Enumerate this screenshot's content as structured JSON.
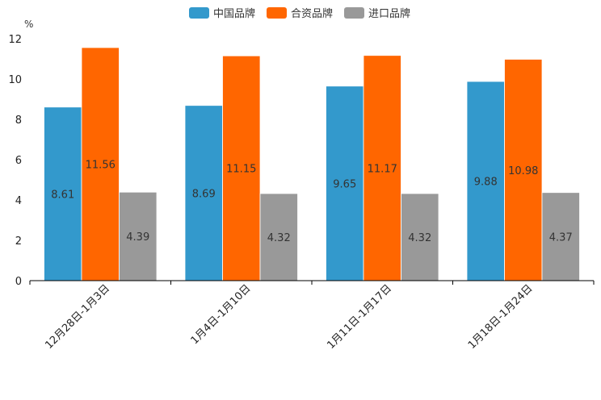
{
  "chart_data": {
    "type": "bar",
    "unit": "%",
    "categories": [
      "12月28日-1月3日",
      "1月4日-1月10日",
      "1月11日-1月17日",
      "1月18日-1月24日"
    ],
    "series": [
      {
        "name": "中国品牌",
        "color": "#3399CC",
        "values": [
          8.61,
          8.69,
          9.65,
          9.88
        ]
      },
      {
        "name": "合资品牌",
        "color": "#FF6600",
        "values": [
          11.56,
          11.15,
          11.17,
          10.98
        ]
      },
      {
        "name": "进口品牌",
        "color": "#999999",
        "values": [
          4.39,
          4.32,
          4.32,
          4.37
        ]
      }
    ],
    "ylim": [
      0,
      12
    ],
    "yticks": [
      "0",
      "2",
      "4",
      "6",
      "8",
      "10",
      "12"
    ],
    "legend_position": "top-center",
    "grid": false
  }
}
